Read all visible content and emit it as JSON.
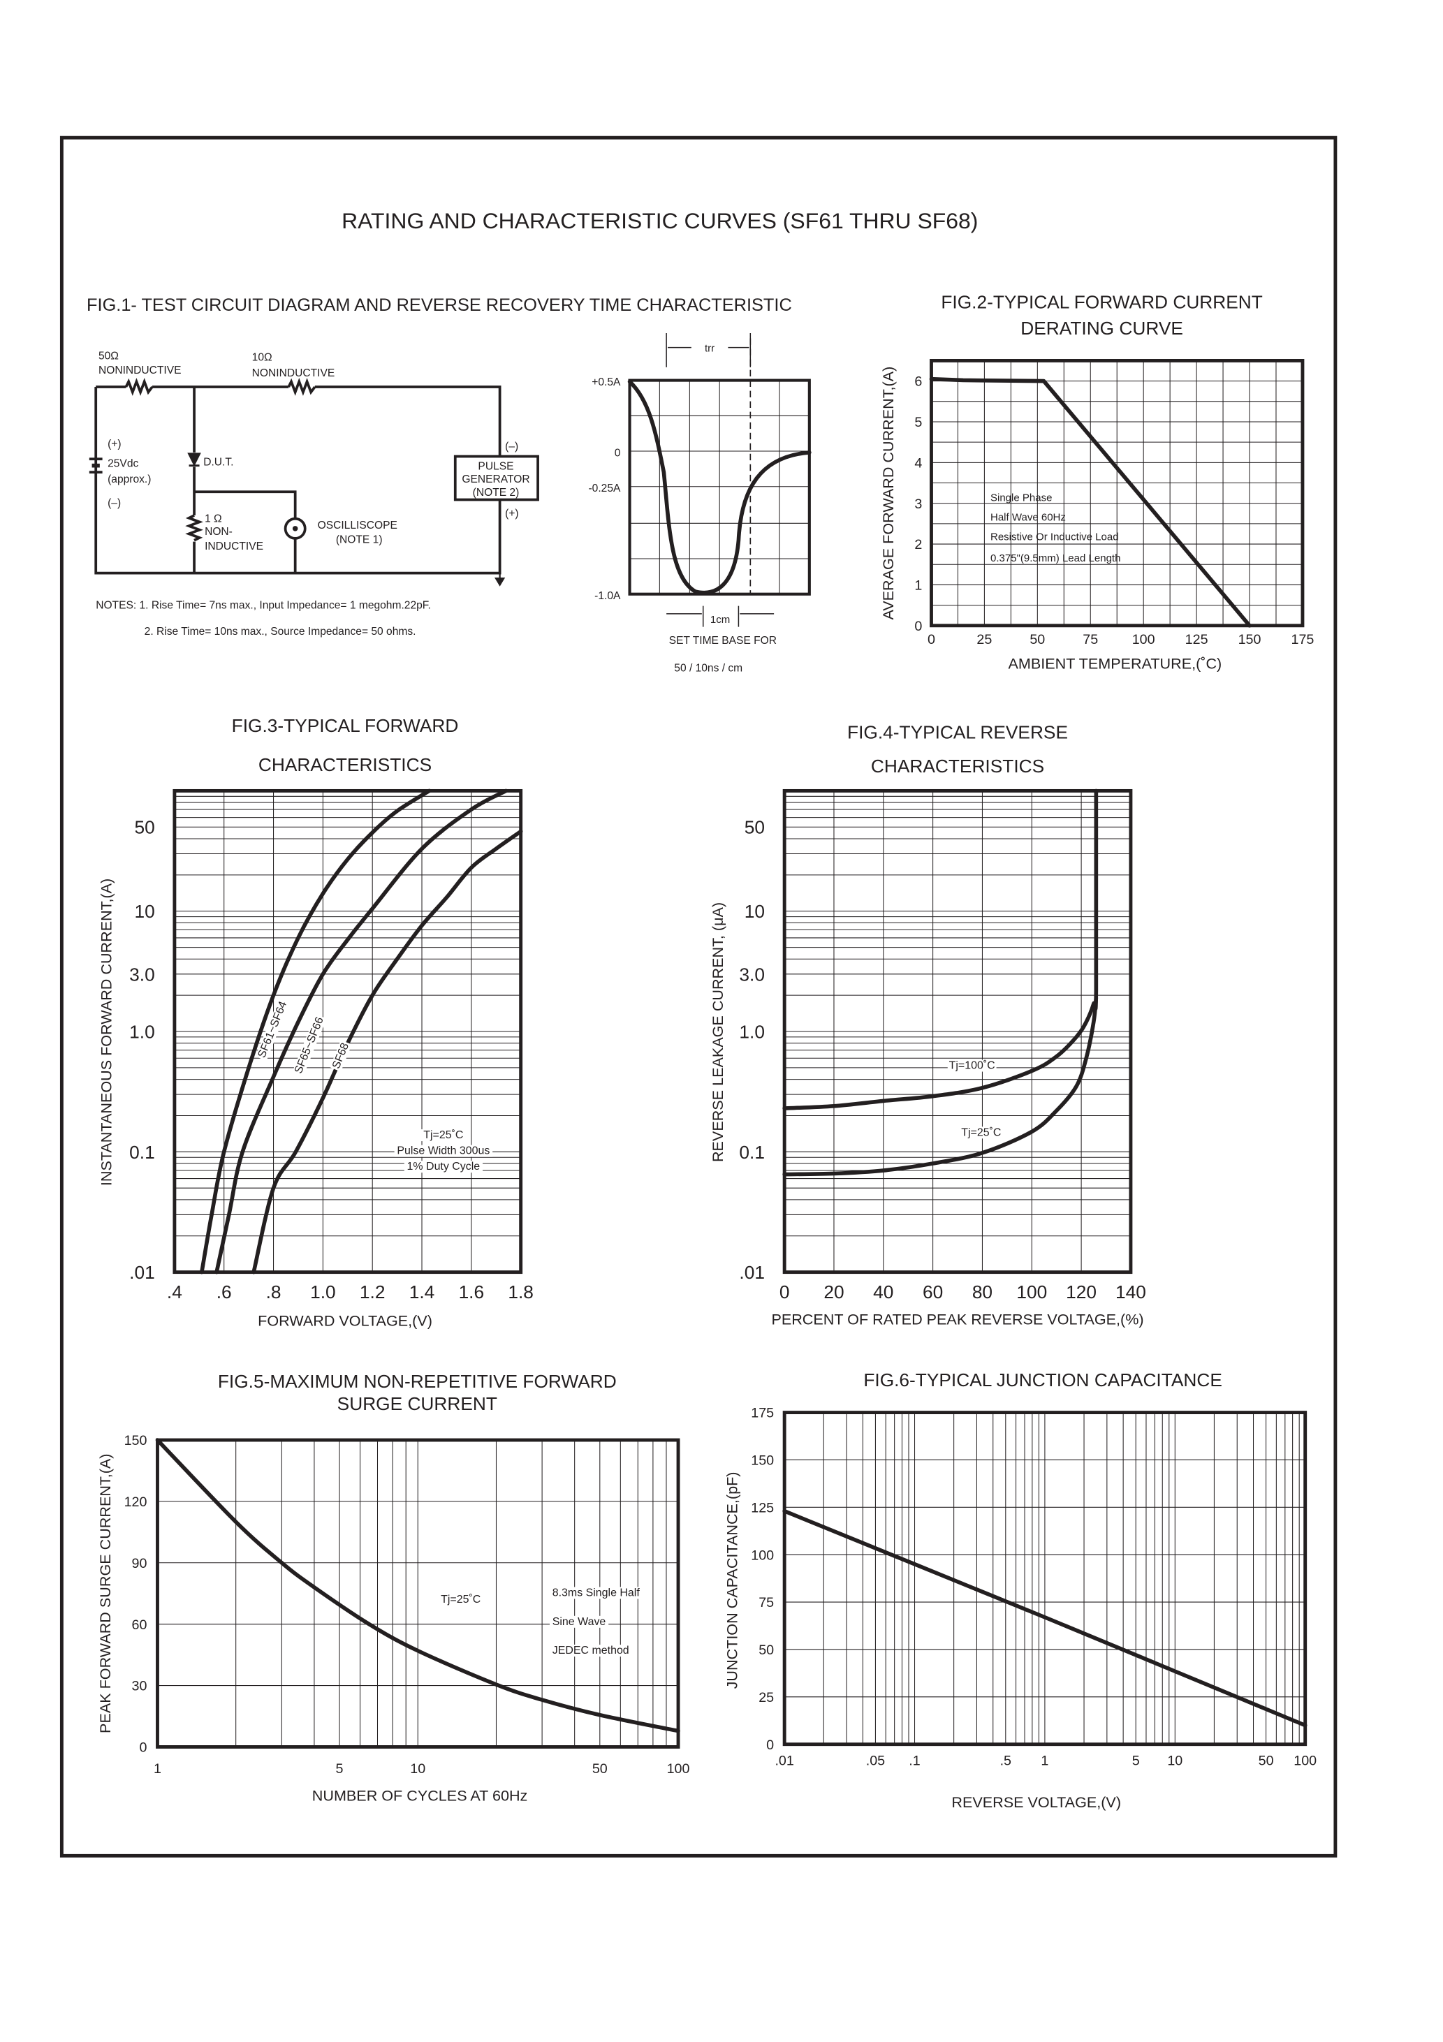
{
  "page": {
    "title": "RATING AND CHARACTERISTIC CURVES (SF61 THRU SF68)"
  },
  "fig1": {
    "title": "FIG.1- TEST CIRCUIT DIAGRAM AND REVERSE RECOVERY TIME CHARACTERISTIC",
    "circuit": {
      "r1_value": "50Ω",
      "r1_type": "NONINDUCTIVE",
      "r2_value": "10Ω",
      "r2_type": "NONINDUCTIVE",
      "plus": "(+)",
      "supply": "25Vdc",
      "supply_note": "(approx.)",
      "minus": "(–)",
      "dut": "D.U.T.",
      "r3_value": "1 Ω",
      "r3_type_1": "NON-",
      "r3_type_2": "INDUCTIVE",
      "scope": "OSCILLISCOPE",
      "scope_note": "(NOTE 1)",
      "pg_1": "PULSE",
      "pg_2": "GENERATOR",
      "pg_3": "(NOTE 2)",
      "pg_minus": "(–)",
      "pg_plus": "(+)"
    },
    "notes": [
      "NOTES: 1. Rise Time= 7ns max., Input Impedance= 1 megohm.22pF.",
      "2. Rise Time= 10ns max., Source Impedance= 50 ohms."
    ],
    "waveform": {
      "trr": "trr",
      "y_labels": [
        "+0.5A",
        "0",
        "-0.25A",
        "-1.0A"
      ],
      "scale": "1cm",
      "caption_1": "SET TIME BASE FOR",
      "caption_2": "50 / 10ns / cm"
    }
  },
  "chart_data": [
    {
      "type": "line",
      "title": [
        "FIG.2-TYPICAL FORWARD CURRENT",
        "DERATING CURVE"
      ],
      "xlabel": "AMBIENT TEMPERATURE,(˚C)",
      "ylabel": "AVERAGE FORWARD CURRENT,(A)",
      "xscale": "linear",
      "yscale": "linear",
      "xlim": [
        0,
        175
      ],
      "ylim": [
        0,
        6.5
      ],
      "grid": true,
      "x_grid_step": 12.5,
      "y_grid_step": 0.5,
      "xticks": {
        "values": [
          0,
          25,
          50,
          75,
          100,
          125,
          150,
          175
        ],
        "labels": [
          "0",
          "25",
          "50",
          "75",
          "100",
          "125",
          "150",
          "175"
        ]
      },
      "yticks": {
        "values": [
          0,
          1,
          2,
          3,
          4,
          5,
          6
        ],
        "labels": [
          "0",
          "1",
          "2",
          "3",
          "4",
          "5",
          "6"
        ]
      },
      "smooth": false,
      "series": [
        {
          "points": [
            [
              0,
              6.05
            ],
            [
              15,
              6.02
            ],
            [
              53,
              6.0
            ],
            [
              150,
              0
            ]
          ]
        }
      ],
      "annotations": [
        "Single Phase",
        "Half Wave 60Hz",
        "Resistive Or Inductive Load",
        "0.375\"(9.5mm) Lead Length"
      ]
    },
    {
      "type": "line",
      "title": [
        "FIG.3-TYPICAL FORWARD",
        "CHARACTERISTICS"
      ],
      "xlabel": "FORWARD VOLTAGE,(V)",
      "ylabel": "INSTANTANEOUS FORWARD CURRENT,(A)",
      "xscale": "linear",
      "yscale": "log",
      "xlim": [
        0.4,
        1.8
      ],
      "ylim": [
        0.01,
        100
      ],
      "grid": true,
      "x_grid_step": 0.2,
      "xticks": {
        "values": [
          0.4,
          0.6,
          0.8,
          1.0,
          1.2,
          1.4,
          1.6,
          1.8
        ],
        "labels": [
          ".4",
          ".6",
          ".8",
          "1.0",
          "1.2",
          "1.4",
          "1.6",
          "1.8"
        ]
      },
      "yticks": {
        "values": [
          0.01,
          0.1,
          1,
          3,
          10,
          50
        ],
        "labels": [
          ".01",
          "0.1",
          "1.0",
          "3.0",
          "10",
          "50"
        ]
      },
      "smooth": true,
      "series": [
        {
          "name": "SF61~SF64",
          "points": [
            [
              0.51,
              0.01
            ],
            [
              0.55,
              0.03
            ],
            [
              0.6,
              0.1
            ],
            [
              0.7,
              0.5
            ],
            [
              0.8,
              2
            ],
            [
              0.9,
              6
            ],
            [
              1.0,
              14
            ],
            [
              1.1,
              27
            ],
            [
              1.2,
              45
            ],
            [
              1.3,
              68
            ],
            [
              1.43,
              100
            ]
          ]
        },
        {
          "name": "SF65~SF66",
          "points": [
            [
              0.57,
              0.01
            ],
            [
              0.62,
              0.03
            ],
            [
              0.675,
              0.1
            ],
            [
              0.8,
              0.42
            ],
            [
              0.9,
              1.2
            ],
            [
              1.0,
              3
            ],
            [
              1.1,
              5.8
            ],
            [
              1.2,
              10.5
            ],
            [
              1.4,
              33
            ],
            [
              1.6,
              70
            ],
            [
              1.74,
              100
            ]
          ]
        },
        {
          "name": "SF68",
          "points": [
            [
              0.72,
              0.01
            ],
            [
              0.8,
              0.05
            ],
            [
              0.89,
              0.1
            ],
            [
              1.0,
              0.28
            ],
            [
              1.1,
              0.8
            ],
            [
              1.2,
              2
            ],
            [
              1.3,
              4
            ],
            [
              1.4,
              7.6
            ],
            [
              1.5,
              13
            ],
            [
              1.6,
              23
            ],
            [
              1.7,
              33
            ],
            [
              1.8,
              46
            ]
          ]
        }
      ],
      "annotations": [
        "Tj=25˚C",
        "Pulse Width 300us",
        "1% Duty Cycle"
      ]
    },
    {
      "type": "line",
      "title": [
        "FIG.4-TYPICAL REVERSE",
        "CHARACTERISTICS"
      ],
      "xlabel": "PERCENT OF RATED PEAK REVERSE VOLTAGE,(%)",
      "ylabel": "REVERSE LEAKAGE CURRENT, (μA)",
      "xscale": "linear",
      "yscale": "log",
      "xlim": [
        0,
        140
      ],
      "ylim": [
        0.01,
        100
      ],
      "grid": true,
      "x_grid_step": 20,
      "xticks": {
        "values": [
          0,
          20,
          40,
          60,
          80,
          100,
          120,
          140
        ],
        "labels": [
          "0",
          "20",
          "40",
          "60",
          "80",
          "100",
          "120",
          "140"
        ]
      },
      "yticks": {
        "values": [
          0.01,
          0.1,
          1,
          3,
          10,
          50
        ],
        "labels": [
          ".01",
          "0.1",
          "1.0",
          "3.0",
          "10",
          "50"
        ]
      },
      "smooth": true,
      "series": [
        {
          "name": "Tj=100˚C",
          "points": [
            [
              0,
              0.23
            ],
            [
              20,
              0.24
            ],
            [
              40,
              0.265
            ],
            [
              60,
              0.29
            ],
            [
              80,
              0.34
            ],
            [
              100,
              0.47
            ],
            [
              110,
              0.62
            ],
            [
              118,
              0.9
            ],
            [
              122,
              1.2
            ],
            [
              125,
              1.7
            ],
            [
              126,
              2.2
            ],
            [
              126,
              100
            ]
          ]
        },
        {
          "name": "Tj=25˚C",
          "points": [
            [
              0,
              0.065
            ],
            [
              20,
              0.066
            ],
            [
              40,
              0.07
            ],
            [
              60,
              0.08
            ],
            [
              80,
              0.098
            ],
            [
              100,
              0.147
            ],
            [
              110,
              0.22
            ],
            [
              118,
              0.35
            ],
            [
              122,
              0.6
            ],
            [
              125,
              1.2
            ],
            [
              126,
              1.9
            ]
          ]
        }
      ],
      "annotations": []
    },
    {
      "type": "line",
      "title": [
        "FIG.5-MAXIMUM NON-REPETITIVE FORWARD",
        "SURGE CURRENT"
      ],
      "xlabel": "NUMBER OF CYCLES AT 60Hz",
      "ylabel": "PEAK FORWARD SURGE CURRENT,(A)",
      "xscale": "log",
      "yscale": "linear",
      "xlim": [
        1,
        100
      ],
      "ylim": [
        0,
        150
      ],
      "grid": true,
      "y_grid_step": 30,
      "xticks": {
        "values": [
          1,
          5,
          10,
          50,
          100
        ],
        "labels": [
          "1",
          "5",
          "10",
          "50",
          "100"
        ]
      },
      "yticks": {
        "values": [
          0,
          30,
          60,
          90,
          120,
          150
        ],
        "labels": [
          "0",
          "30",
          "60",
          "90",
          "120",
          "150"
        ]
      },
      "smooth": true,
      "series": [
        {
          "points": [
            [
              1,
              150
            ],
            [
              2,
              110
            ],
            [
              3,
              90
            ],
            [
              4,
              78
            ],
            [
              6.5,
              60
            ],
            [
              10,
              47
            ],
            [
              20,
              30.5
            ],
            [
              30,
              23
            ],
            [
              50,
              15.6
            ],
            [
              100,
              7.8
            ]
          ]
        }
      ],
      "annotations": [
        "Tj=25˚C",
        "8.3ms Single Half",
        "Sine Wave",
        "JEDEC method"
      ]
    },
    {
      "type": "line",
      "title": [
        "FIG.6-TYPICAL JUNCTION CAPACITANCE"
      ],
      "xlabel": "REVERSE VOLTAGE,(V)",
      "ylabel": "JUNCTION CAPACITANCE,(pF)",
      "xscale": "log",
      "yscale": "linear",
      "xlim": [
        0.01,
        100
      ],
      "ylim": [
        0,
        175
      ],
      "grid": true,
      "y_grid_step": 25,
      "xticks": {
        "values": [
          0.01,
          0.05,
          0.1,
          0.5,
          1,
          5,
          10,
          50,
          100
        ],
        "labels": [
          ".01",
          ".05",
          ".1",
          ".5",
          "1",
          "5",
          "10",
          "50",
          "100"
        ]
      },
      "yticks": {
        "values": [
          0,
          25,
          50,
          75,
          100,
          125,
          150,
          175
        ],
        "labels": [
          "0",
          "25",
          "50",
          "75",
          "100",
          "125",
          "150",
          "175"
        ]
      },
      "smooth": false,
      "series": [
        {
          "points": [
            [
              0.01,
              123
            ],
            [
              0.1,
              95
            ],
            [
              1,
              67
            ],
            [
              10,
              38.5
            ],
            [
              100,
              10
            ]
          ]
        }
      ],
      "annotations": []
    }
  ]
}
